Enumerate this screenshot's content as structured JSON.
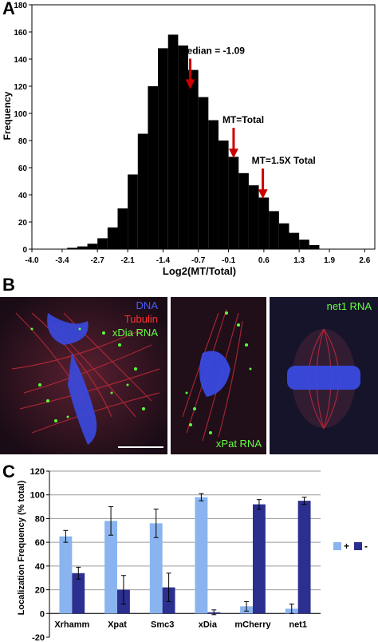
{
  "panels": {
    "a": "A",
    "b": "B",
    "c": "C"
  },
  "chart_data": [
    {
      "type": "bar",
      "panel": "A",
      "title": "",
      "xlabel": "Log2(MT/Total)",
      "ylabel": "Frequency",
      "xlim": [
        -4.0,
        2.8
      ],
      "ylim": [
        0,
        180
      ],
      "x_ticks": [
        "-4.0",
        "-3.4",
        "-2.7",
        "-2.1",
        "-1.4",
        "-0.7",
        "-0.1",
        "0.6",
        "1.3",
        "1.9",
        "2.6"
      ],
      "y_ticks": [
        "0",
        "20",
        "40",
        "60",
        "80",
        "100",
        "120",
        "140",
        "160",
        "180"
      ],
      "bins": {
        "x": [
          -3.2,
          -3.0,
          -2.8,
          -2.6,
          -2.4,
          -2.2,
          -2.0,
          -1.8,
          -1.6,
          -1.4,
          -1.2,
          -1.0,
          -0.8,
          -0.6,
          -0.4,
          -0.2,
          0.0,
          0.2,
          0.4,
          0.6,
          0.8,
          1.0,
          1.2,
          1.4,
          1.6
        ],
        "values": [
          1,
          2,
          4,
          8,
          16,
          30,
          55,
          85,
          120,
          148,
          158,
          150,
          132,
          112,
          95,
          80,
          68,
          56,
          47,
          38,
          28,
          19,
          12,
          7,
          3
        ]
      },
      "annotations": [
        {
          "text": "Median = -1.09",
          "x": -0.86,
          "y": 118
        },
        {
          "text": "MT=Total",
          "x": 0.0,
          "y": 67
        },
        {
          "text": "MT=1.5X Total",
          "x": 0.58,
          "y": 37
        }
      ],
      "grid": false
    },
    {
      "type": "bar",
      "panel": "C",
      "title": "",
      "xlabel": "",
      "ylabel": "Localization Frequency (% total)",
      "ylim": [
        -20,
        120
      ],
      "y_ticks": [
        "-20",
        "0",
        "20",
        "40",
        "60",
        "80",
        "100",
        "120"
      ],
      "categories": [
        "Xrhamm",
        "Xpat",
        "Smc3",
        "xDia",
        "mCherry",
        "net1"
      ],
      "series": [
        {
          "name": "+",
          "color": "#8ab4f0",
          "values": [
            65,
            78,
            76,
            98,
            6,
            4
          ],
          "errors": [
            5,
            12,
            12,
            3,
            4,
            4
          ]
        },
        {
          "name": "-",
          "color": "#2b2f8f",
          "values": [
            34,
            20,
            22,
            1,
            92,
            95
          ],
          "errors": [
            5,
            12,
            12,
            2,
            4,
            3
          ]
        }
      ],
      "legend_placement": "right",
      "grid": true
    }
  ],
  "micrographs": [
    {
      "labels": [
        {
          "text": "DNA",
          "color": "#4a5cff"
        },
        {
          "text": "Tubulin",
          "color": "#ff3030"
        },
        {
          "text": "xDia RNA",
          "color": "#66ff44"
        }
      ]
    },
    {
      "labels": [
        {
          "text": "xPat RNA",
          "color": "#66ff44"
        }
      ]
    },
    {
      "labels": [
        {
          "text": "net1 RNA",
          "color": "#66ff44"
        }
      ]
    }
  ]
}
